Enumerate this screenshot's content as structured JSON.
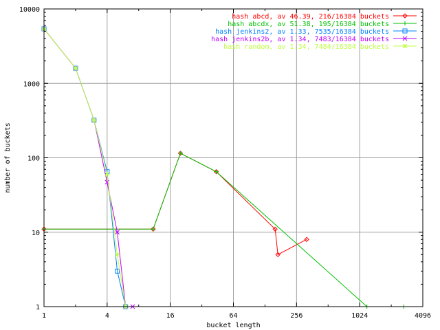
{
  "chart_data": {
    "type": "line",
    "xlabel": "bucket length",
    "ylabel": "number of buckets",
    "x_scale": "log2",
    "y_scale": "log10",
    "xlim": [
      1,
      4096
    ],
    "ylim": [
      1,
      10000
    ],
    "grid": true,
    "legend_position": "top-right",
    "x_ticks": [
      {
        "value": 1,
        "label": "1"
      },
      {
        "value": 4,
        "label": "4"
      },
      {
        "value": 16,
        "label": "16"
      },
      {
        "value": 64,
        "label": "64"
      },
      {
        "value": 256,
        "label": "256"
      },
      {
        "value": 1024,
        "label": "1024"
      },
      {
        "value": 4096,
        "label": "4096"
      }
    ],
    "y_ticks": [
      {
        "value": 1,
        "label": "1"
      },
      {
        "value": 10,
        "label": "10"
      },
      {
        "value": 100,
        "label": "100"
      },
      {
        "value": 1000,
        "label": "1000"
      },
      {
        "value": 10000,
        "label": "10000"
      }
    ],
    "series": [
      {
        "name": "hash abcd, av 46.39, 216/16384 buckets",
        "color": "#ff0000",
        "marker": "diamond",
        "points": [
          [
            1,
            11
          ],
          [
            11,
            11
          ],
          [
            20,
            115
          ],
          [
            44,
            65
          ],
          [
            160,
            11
          ],
          [
            170,
            5
          ],
          [
            320,
            8
          ]
        ]
      },
      {
        "name": "hash abcdx, av 51.38, 195/16384 buckets",
        "color": "#00c000",
        "marker": "plus",
        "points": [
          [
            1,
            11
          ],
          [
            11,
            11
          ],
          [
            20,
            115
          ],
          [
            44,
            65
          ],
          [
            1200,
            1
          ],
          [
            2700,
            1
          ]
        ]
      },
      {
        "name": "hash jenkins2, av 1.33, 7535/16384 buckets",
        "color": "#0080ff",
        "marker": "square",
        "points": [
          [
            1,
            5400
          ],
          [
            2,
            1600
          ],
          [
            3,
            320
          ],
          [
            4,
            65
          ],
          [
            5,
            3
          ],
          [
            6,
            1
          ]
        ]
      },
      {
        "name": "hash jenkins2b, av 1.34, 7483/16384 buckets",
        "color": "#c000ff",
        "marker": "cross",
        "points": [
          [
            1,
            5400
          ],
          [
            2,
            1600
          ],
          [
            3,
            320
          ],
          [
            4,
            47
          ],
          [
            5,
            10
          ],
          [
            6,
            1
          ],
          [
            7,
            1
          ]
        ]
      },
      {
        "name": "hash random, av 1.34, 7484/16384 buckets",
        "color": "#c0ff40",
        "marker": "star",
        "points": [
          [
            1,
            5400
          ],
          [
            2,
            1600
          ],
          [
            3,
            320
          ],
          [
            4,
            60
          ],
          [
            5,
            5
          ],
          [
            6,
            1
          ]
        ]
      }
    ]
  }
}
